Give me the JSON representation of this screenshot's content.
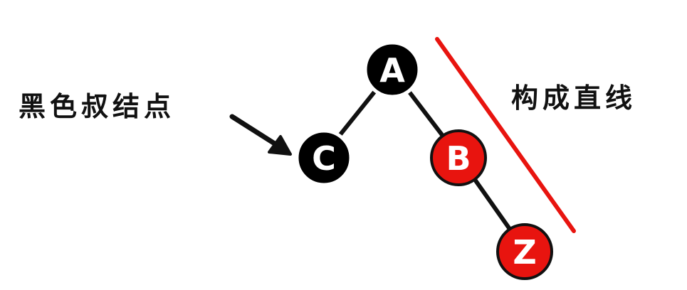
{
  "diagram": {
    "nodes": [
      {
        "id": "A",
        "label": "A",
        "color": "black"
      },
      {
        "id": "C",
        "label": "C",
        "color": "black"
      },
      {
        "id": "B",
        "label": "B",
        "color": "red"
      },
      {
        "id": "Z",
        "label": "Z",
        "color": "red"
      }
    ],
    "edges": [
      {
        "from": "A",
        "to": "C"
      },
      {
        "from": "A",
        "to": "B"
      },
      {
        "from": "B",
        "to": "Z"
      }
    ],
    "annotations": {
      "uncle_label": "黑色叔结点",
      "line_label": "构成直线"
    },
    "colors": {
      "black_node": "#000000",
      "red_node": "#e8140f",
      "highlight_line": "#e8140f",
      "edge": "#111111",
      "node_text": "#ffffff"
    }
  }
}
